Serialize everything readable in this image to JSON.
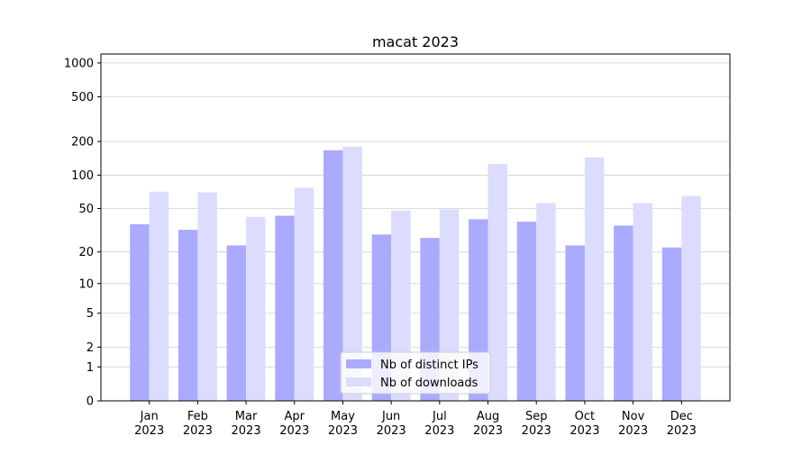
{
  "chart_data": {
    "type": "bar",
    "title": "macat 2023",
    "categories": [
      "Jan\n2023",
      "Feb\n2023",
      "Mar\n2023",
      "Apr\n2023",
      "May\n2023",
      "Jun\n2023",
      "Jul\n2023",
      "Aug\n2023",
      "Sep\n2023",
      "Oct\n2023",
      "Nov\n2023",
      "Dec\n2023"
    ],
    "series": [
      {
        "name": "Nb of distinct IPs",
        "color": "#aaaaff",
        "values": [
          36,
          32,
          23,
          43,
          167,
          29,
          27,
          40,
          38,
          23,
          35,
          22
        ]
      },
      {
        "name": "Nb of downloads",
        "color": "#dcdcff",
        "values": [
          71,
          70,
          42,
          77,
          180,
          48,
          49,
          126,
          56,
          144,
          56,
          65
        ]
      }
    ],
    "yscale": "log1p",
    "ylim": [
      0,
      1200
    ],
    "yticks": [
      0,
      1,
      2,
      5,
      10,
      20,
      50,
      100,
      200,
      500,
      1000
    ],
    "grid": true,
    "legend": "lower center"
  }
}
